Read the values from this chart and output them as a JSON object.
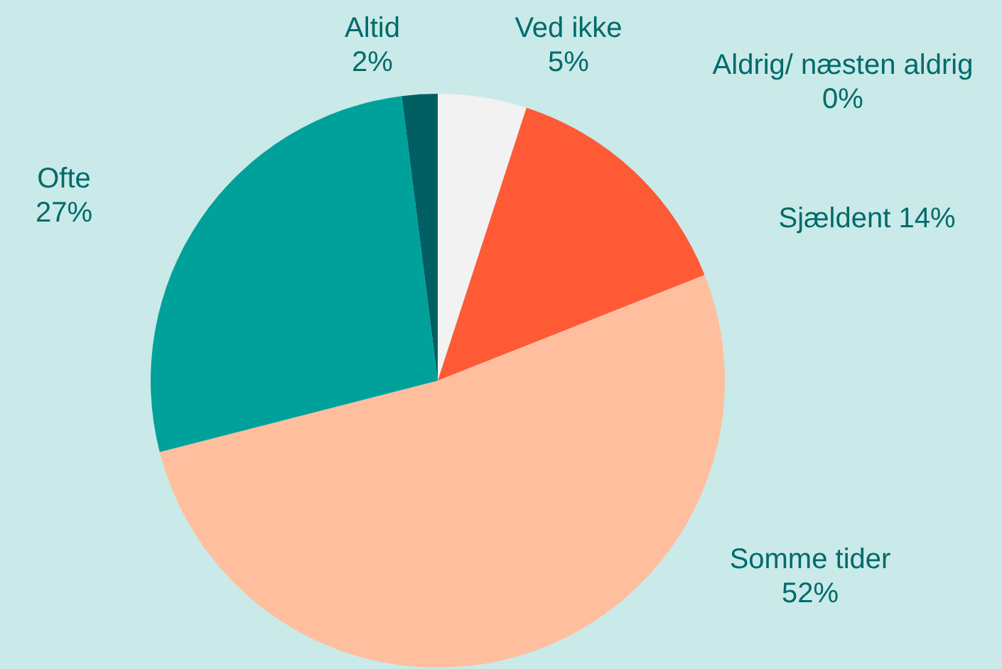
{
  "chart_data": {
    "type": "pie",
    "categories": [
      "Ved ikke",
      "Aldrig/ næsten aldrig",
      "Sjældent",
      "Somme tider",
      "Ofte",
      "Altid"
    ],
    "values": [
      5,
      0,
      14,
      52,
      27,
      2
    ],
    "value_labels": [
      "5%",
      "0%",
      "14%",
      "52%",
      "27%",
      "2%"
    ],
    "colors": [
      "#f2f2f2",
      "#e0e0e0",
      "#ff5a36",
      "#ffbe9d",
      "#00a19a",
      "#005f63"
    ]
  }
}
